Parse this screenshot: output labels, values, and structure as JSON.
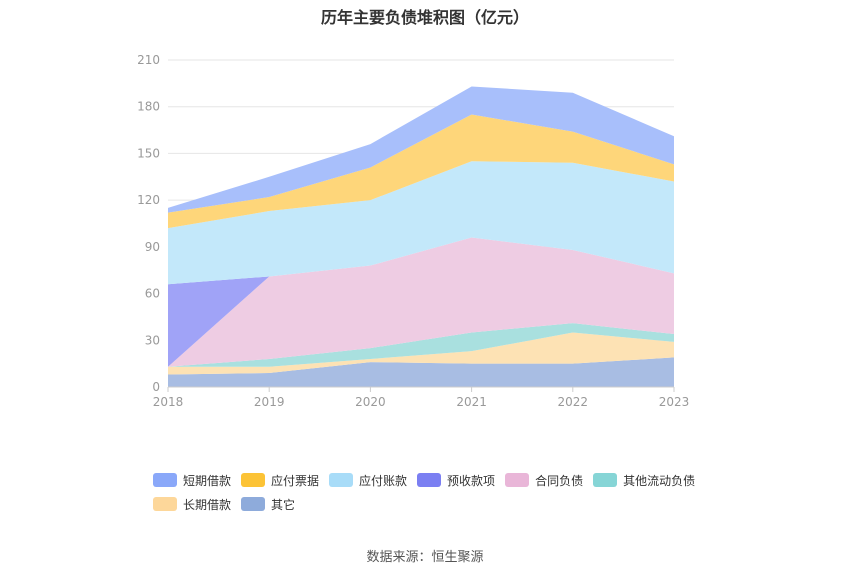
{
  "header": {
    "title": "历年主要负债堆积图（亿元）"
  },
  "footer": {
    "source": "数据来源：恒生聚源"
  },
  "chart_data": {
    "type": "area",
    "stacked": true,
    "categories": [
      "2018",
      "2019",
      "2020",
      "2021",
      "2022",
      "2023"
    ],
    "ylim": [
      0,
      210
    ],
    "yticks": [
      0,
      30,
      60,
      90,
      120,
      150,
      180,
      210
    ],
    "grid": true,
    "legend_position": "bottom",
    "series": [
      {
        "name": "其它",
        "color": "#a8bde3",
        "legend_color": "#8eabdb",
        "values": [
          8,
          9,
          16,
          15,
          15,
          19
        ]
      },
      {
        "name": "长期借款",
        "color": "#fde2b4",
        "legend_color": "#fdd79a",
        "values": [
          5,
          4,
          2,
          8,
          20,
          10
        ]
      },
      {
        "name": "其他流动负债",
        "color": "#a9e0df",
        "legend_color": "#86d5d6",
        "values": [
          0,
          5,
          7,
          12,
          6,
          5
        ]
      },
      {
        "name": "合同负债",
        "color": "#eeccE3",
        "legend_color": "#e9b6d8",
        "values": [
          0,
          53,
          53,
          61,
          47,
          39
        ]
      },
      {
        "name": "预收款项",
        "color": "#a0a3f7",
        "legend_color": "#7b7ff2",
        "values": [
          53,
          0,
          0,
          0,
          0,
          0
        ]
      },
      {
        "name": "应付账款",
        "color": "#c3e8fa",
        "legend_color": "#a8dcf8",
        "values": [
          36,
          42,
          42,
          49,
          56,
          59
        ]
      },
      {
        "name": "应付票据",
        "color": "#fed67a",
        "legend_color": "#fcc336",
        "values": [
          10,
          9,
          21,
          30,
          20,
          11
        ]
      },
      {
        "name": "短期借款",
        "color": "#a8bffb",
        "legend_color": "#8aa8f9",
        "values": [
          3,
          13,
          15,
          18,
          25,
          18
        ]
      }
    ],
    "legend_order": [
      "短期借款",
      "应付票据",
      "应付账款",
      "预收款项",
      "合同负债",
      "其他流动负债",
      "长期借款",
      "其它"
    ]
  }
}
